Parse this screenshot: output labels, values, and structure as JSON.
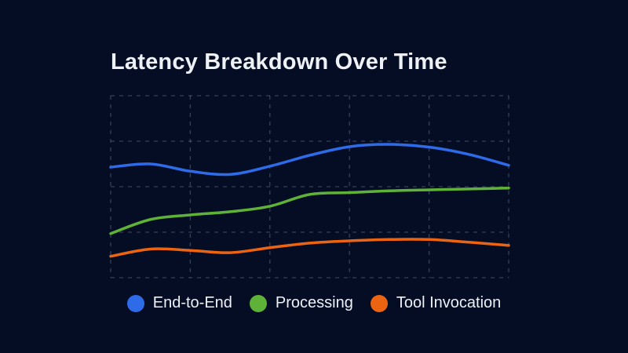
{
  "colors": {
    "background": "#050D24",
    "title_text": "#EEF1F6",
    "legend_text": "#EEF1F6",
    "gridline": "#808DA8"
  },
  "chart_data": {
    "type": "line",
    "title": "Latency Breakdown Over Time",
    "xlabel": "",
    "ylabel": "",
    "x": [
      0,
      1,
      2,
      3,
      4,
      5,
      6,
      7,
      8,
      9,
      10
    ],
    "x_axis": {
      "tick_labels_visible": false
    },
    "y_axis": {
      "min": 0,
      "max": 4,
      "gridline_every": 1,
      "tick_labels_visible": false
    },
    "grid": {
      "visible": true,
      "style": "dashed",
      "vertical_divisions": 5,
      "horizontal_divisions": 4
    },
    "legend": {
      "position": "bottom-center",
      "marker": "dot"
    },
    "series": [
      {
        "name": "End-to-End",
        "color": "#2E6BE9",
        "values": [
          2.43,
          2.5,
          2.34,
          2.27,
          2.45,
          2.69,
          2.88,
          2.93,
          2.87,
          2.71,
          2.47
        ]
      },
      {
        "name": "Processing",
        "color": "#5FB238",
        "values": [
          0.97,
          1.28,
          1.38,
          1.45,
          1.57,
          1.83,
          1.87,
          1.91,
          1.93,
          1.95,
          1.97
        ]
      },
      {
        "name": "Tool Invocation",
        "color": "#EC6411",
        "values": [
          0.47,
          0.63,
          0.6,
          0.55,
          0.66,
          0.76,
          0.81,
          0.84,
          0.84,
          0.78,
          0.71
        ]
      }
    ],
    "note": "No numeric axis labels are visible; values are expressed in gridline units (0 = bottom gridline, 1 unit = one horizontal gridline spacing)."
  }
}
